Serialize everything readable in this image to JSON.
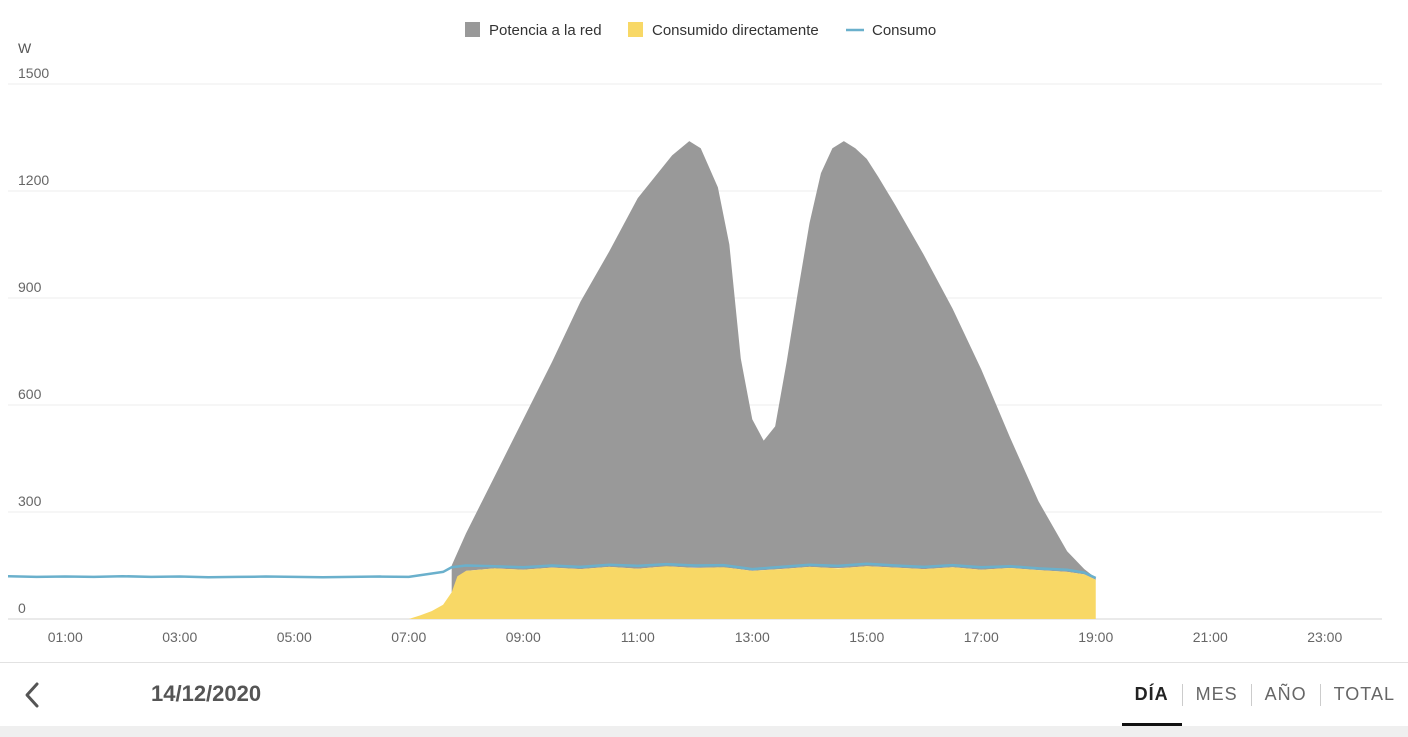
{
  "chart_data": {
    "type": "area",
    "y_unit_label": "W",
    "y_ticks": [
      0,
      300,
      600,
      900,
      1200,
      1500
    ],
    "ylim": [
      0,
      1500
    ],
    "xlim": [
      0,
      24
    ],
    "x_ticks": [
      "01:00",
      "03:00",
      "05:00",
      "07:00",
      "09:00",
      "11:00",
      "13:00",
      "15:00",
      "17:00",
      "19:00",
      "21:00",
      "23:00"
    ],
    "x_tick_hours": [
      1,
      3,
      5,
      7,
      9,
      11,
      13,
      15,
      17,
      19,
      21,
      23
    ],
    "grid": true,
    "legend_position": "top-center",
    "colors": {
      "grid_feed": "#999999",
      "direct": "#f8d866",
      "consumption": "#6ab0cc"
    },
    "series": [
      {
        "name": "Potencia a la red",
        "kind": "area-band",
        "x": [
          7.75,
          8.0,
          8.5,
          9.0,
          9.5,
          10.0,
          10.5,
          11.0,
          11.3,
          11.6,
          11.9,
          12.1,
          12.4,
          12.6,
          12.8,
          13.0,
          13.2,
          13.4,
          13.6,
          13.8,
          14.0,
          14.2,
          14.4,
          14.6,
          14.8,
          15.0,
          15.2,
          15.5,
          16.0,
          16.5,
          17.0,
          17.5,
          18.0,
          18.5,
          18.8,
          19.0
        ],
        "y": [
          150,
          240,
          400,
          560,
          720,
          890,
          1030,
          1180,
          1240,
          1300,
          1340,
          1320,
          1210,
          1050,
          730,
          560,
          500,
          540,
          720,
          920,
          1110,
          1250,
          1320,
          1340,
          1320,
          1290,
          1240,
          1160,
          1020,
          870,
          700,
          510,
          330,
          190,
          140,
          115
        ]
      },
      {
        "name": "Consumido directamente",
        "kind": "area",
        "x": [
          7.0,
          7.2,
          7.4,
          7.6,
          7.75,
          7.85,
          8.0,
          8.5,
          9.0,
          9.5,
          10.0,
          10.5,
          11.0,
          11.5,
          12.0,
          12.5,
          13.0,
          13.5,
          14.0,
          14.5,
          15.0,
          15.5,
          16.0,
          16.5,
          17.0,
          17.5,
          18.0,
          18.5,
          18.8,
          19.0
        ],
        "y": [
          0,
          10,
          22,
          40,
          75,
          120,
          135,
          142,
          138,
          144,
          140,
          146,
          141,
          148,
          143,
          145,
          135,
          140,
          146,
          142,
          148,
          144,
          140,
          145,
          138,
          143,
          137,
          132,
          125,
          110
        ]
      },
      {
        "name": "Consumo",
        "kind": "line",
        "x": [
          0,
          0.5,
          1.0,
          1.5,
          2.0,
          2.5,
          3.0,
          3.5,
          4.0,
          4.5,
          5.0,
          5.5,
          6.0,
          6.5,
          7.0,
          7.3,
          7.6,
          7.75,
          8.0,
          8.5,
          9.0,
          9.5,
          10.0,
          10.5,
          11.0,
          11.5,
          12.0,
          12.5,
          13.0,
          13.5,
          14.0,
          14.5,
          15.0,
          15.5,
          16.0,
          16.5,
          17.0,
          17.5,
          18.0,
          18.5,
          18.8,
          19.0
        ],
        "y": [
          120,
          118,
          119,
          118,
          120,
          118,
          119,
          117,
          118,
          119,
          118,
          117,
          118,
          119,
          118,
          125,
          132,
          145,
          150,
          148,
          145,
          150,
          146,
          152,
          149,
          154,
          150,
          151,
          140,
          146,
          152,
          149,
          155,
          150,
          146,
          151,
          145,
          148,
          142,
          138,
          130,
          115
        ]
      }
    ]
  },
  "footer": {
    "date": "14/12/2020",
    "tabs": [
      "DÍA",
      "MES",
      "AÑO",
      "TOTAL"
    ],
    "active_tab": "DÍA"
  }
}
